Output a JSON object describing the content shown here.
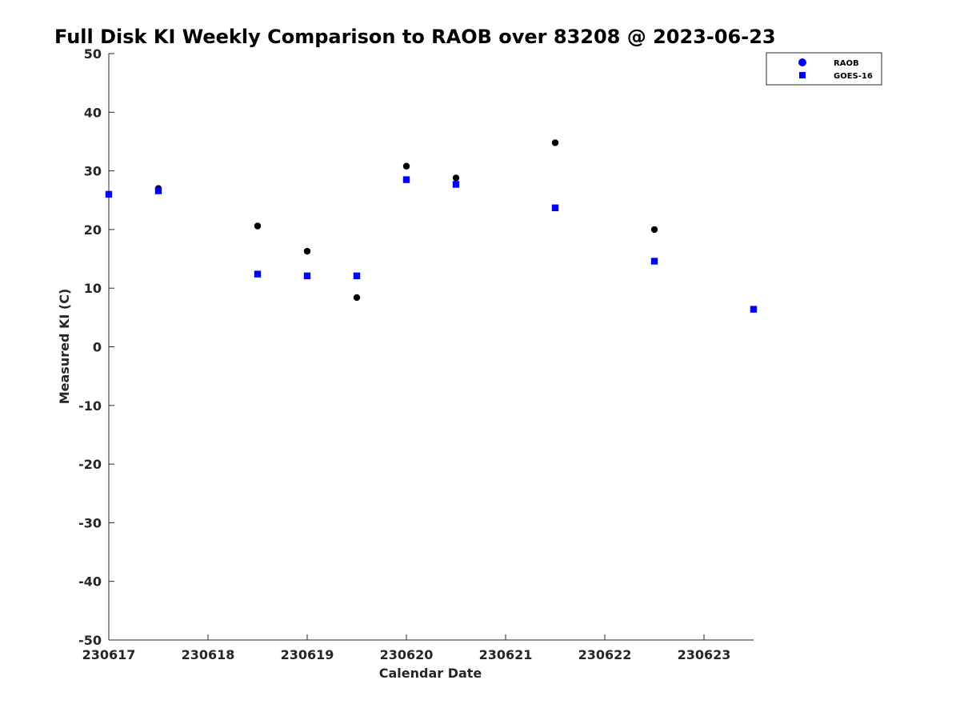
{
  "chart_data": {
    "type": "scatter",
    "title": "Full Disk KI Weekly Comparison to RAOB over 83208 @ 2023-06-23",
    "xlabel": "Calendar Date",
    "ylabel": "Measured KI (C)",
    "xlim": [
      "2023-06-17T00:00",
      "2023-06-23T12:00"
    ],
    "ylim": [
      -50,
      50
    ],
    "x_ticks": [
      "2023-06-17",
      "2023-06-18",
      "2023-06-19",
      "2023-06-20",
      "2023-06-21",
      "2023-06-22",
      "2023-06-23"
    ],
    "x_tick_labels": [
      "230617",
      "230618",
      "230619",
      "230620",
      "230621",
      "230622",
      "230623"
    ],
    "y_ticks": [
      50,
      40,
      30,
      20,
      10,
      0,
      -10,
      -20,
      -30,
      -40,
      -50
    ],
    "y_tick_labels": [
      "50",
      "40",
      "30",
      "20",
      "10",
      "0",
      "-10",
      "-20",
      "-30",
      "-40",
      "-50"
    ],
    "grid": false,
    "legend_position": "top-right",
    "series": [
      {
        "name": "RAOB",
        "marker": "circle",
        "color": "#000000",
        "legend_color": "#0000ff",
        "points": [
          {
            "x": "2023-06-17T00:00",
            "y": 26.0
          },
          {
            "x": "2023-06-17T12:00",
            "y": 27.0
          },
          {
            "x": "2023-06-18T12:00",
            "y": 20.6
          },
          {
            "x": "2023-06-19T00:00",
            "y": 16.3
          },
          {
            "x": "2023-06-19T12:00",
            "y": 8.4
          },
          {
            "x": "2023-06-20T00:00",
            "y": 30.8
          },
          {
            "x": "2023-06-20T12:00",
            "y": 28.8
          },
          {
            "x": "2023-06-21T12:00",
            "y": 34.8
          },
          {
            "x": "2023-06-22T12:00",
            "y": 20.0
          },
          {
            "x": "2023-06-23T12:00",
            "y": 6.4
          }
        ]
      },
      {
        "name": "GOES-16",
        "marker": "square",
        "color": "#0000ff",
        "points": [
          {
            "x": "2023-06-17T00:00",
            "y": 26.0
          },
          {
            "x": "2023-06-17T12:00",
            "y": 26.6
          },
          {
            "x": "2023-06-18T12:00",
            "y": 12.4
          },
          {
            "x": "2023-06-19T00:00",
            "y": 12.1
          },
          {
            "x": "2023-06-19T12:00",
            "y": 12.1
          },
          {
            "x": "2023-06-20T00:00",
            "y": 28.5
          },
          {
            "x": "2023-06-20T12:00",
            "y": 27.7
          },
          {
            "x": "2023-06-21T12:00",
            "y": 23.7
          },
          {
            "x": "2023-06-22T12:00",
            "y": 14.6
          },
          {
            "x": "2023-06-23T12:00",
            "y": 6.4
          }
        ]
      }
    ]
  }
}
